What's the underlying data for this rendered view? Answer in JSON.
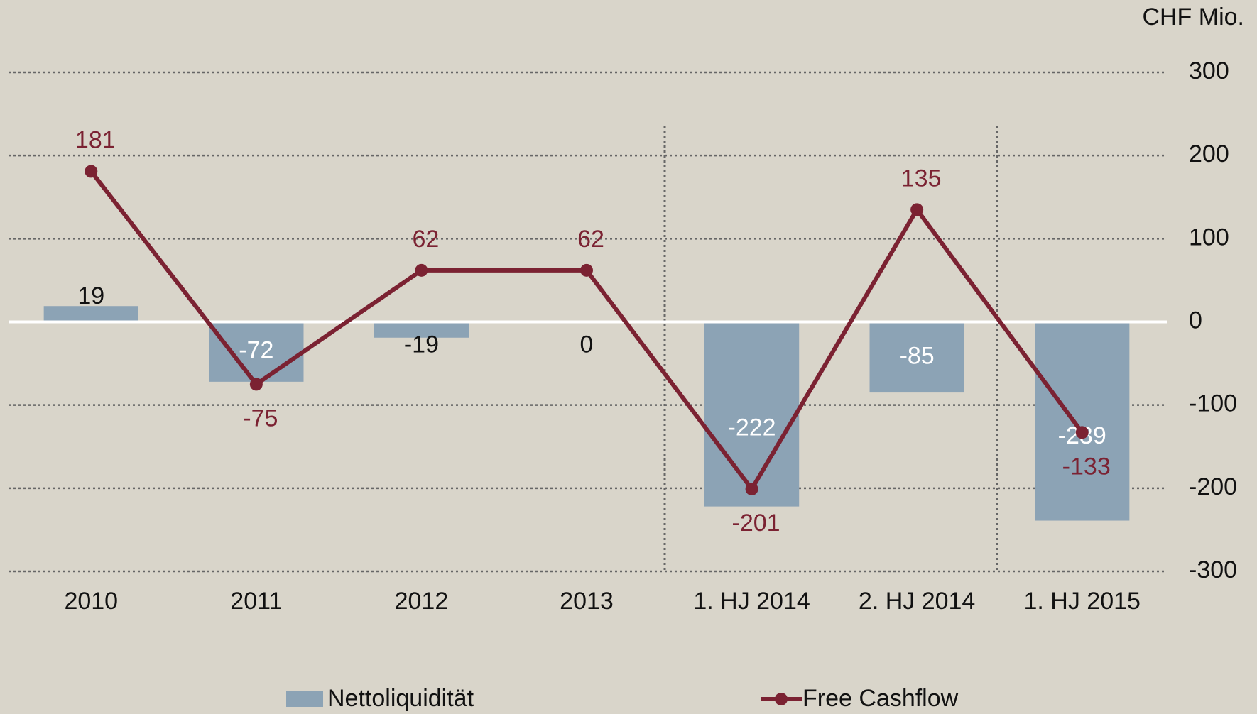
{
  "chart_data": {
    "type": "bar",
    "unit_label": "CHF Mio.",
    "categories": [
      "2010",
      "2011",
      "2012",
      "2013",
      "1. HJ 2014",
      "2. HJ 2014",
      "1. HJ 2015"
    ],
    "series": [
      {
        "name": "Nettoliquidität",
        "kind": "bar",
        "color": "#8ca3b5",
        "values": [
          19,
          -72,
          -19,
          0,
          -222,
          -85,
          -239
        ]
      },
      {
        "name": "Free Cashflow",
        "kind": "line",
        "color": "#7b2232",
        "values": [
          181,
          -75,
          62,
          62,
          -201,
          135,
          -133
        ]
      }
    ],
    "ylim": [
      -300,
      300
    ],
    "yticks": [
      -300,
      -200,
      -100,
      0,
      100,
      200,
      300
    ],
    "grid": true,
    "legend": "bottom"
  }
}
